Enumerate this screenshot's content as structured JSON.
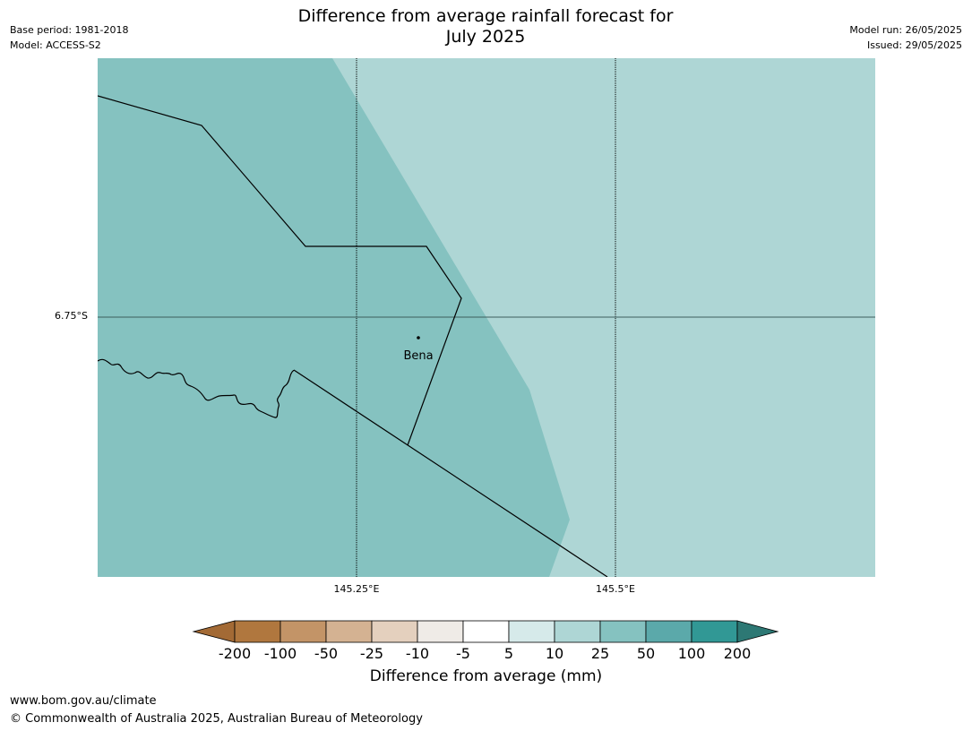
{
  "header": {
    "title_line1": "Difference from average rainfall forecast for",
    "title_line2": "July 2025",
    "base_period": "Base period: 1981-2018",
    "model": "Model: ACCESS-S2",
    "model_run": "Model run: 26/05/2025",
    "issued": "Issued: 29/05/2025"
  },
  "map": {
    "place_label": "Bena",
    "lon_ticks": [
      "145.25°E",
      "145.5°E"
    ],
    "lat_ticks": [
      "6.75°S"
    ],
    "region_colors": {
      "west": "#85c2c0",
      "east": "#aed6d5"
    }
  },
  "colorbar": {
    "title": "Difference from average (mm)",
    "tick_labels": [
      "-200",
      "-100",
      "-50",
      "-25",
      "-10",
      "-5",
      "5",
      "10",
      "25",
      "50",
      "100",
      "200"
    ],
    "colors": [
      "#a36a35",
      "#b0773e",
      "#c39467",
      "#d4b292",
      "#e4d0be",
      "#efebe7",
      "#ffffff",
      "#d6eaea",
      "#aed6d5",
      "#85c2c0",
      "#5ba9aa",
      "#319895",
      "#2d7874"
    ]
  },
  "footer": {
    "url": "www.bom.gov.au/climate",
    "copyright": "© Commonwealth of Australia 2025, Australian Bureau of Meteorology"
  }
}
